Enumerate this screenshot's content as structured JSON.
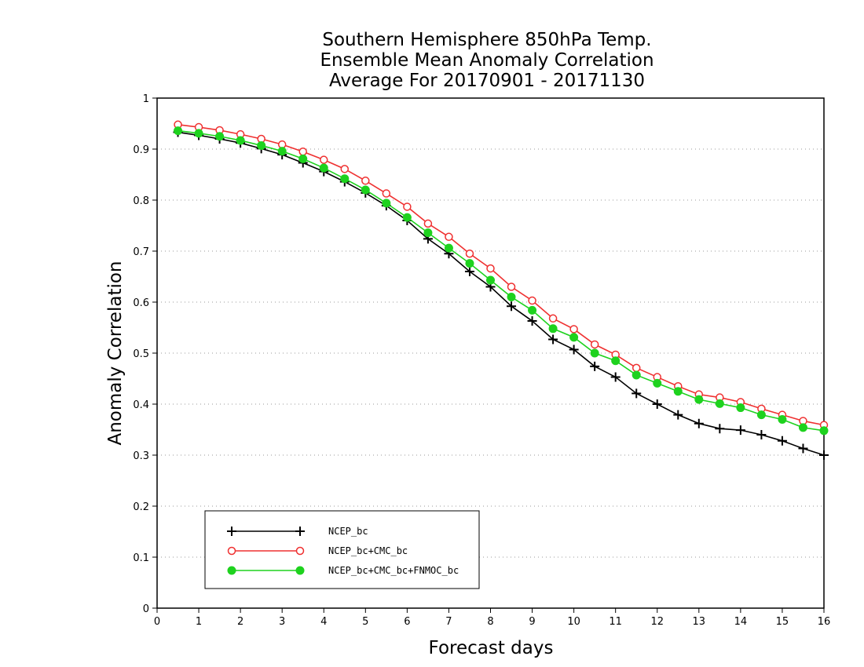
{
  "chart_data": {
    "type": "line",
    "title": [
      "Southern Hemisphere 850hPa Temp.",
      "Ensemble Mean Anomaly Correlation",
      "Average For 20170901 - 20171130"
    ],
    "xlabel": "Forecast days",
    "ylabel": "Anomaly Correlation",
    "xlim": [
      0,
      16
    ],
    "ylim": [
      0,
      1
    ],
    "xticks": [
      0,
      1,
      2,
      3,
      4,
      5,
      6,
      7,
      8,
      9,
      10,
      11,
      12,
      13,
      14,
      15,
      16
    ],
    "yticks": [
      0,
      0.1,
      0.2,
      0.3,
      0.4,
      0.5,
      0.6,
      0.7,
      0.8,
      0.9,
      1
    ],
    "grid": "horizontal-dotted",
    "legend_position": "bottom-left",
    "x": [
      0.5,
      1,
      1.5,
      2,
      2.5,
      3,
      3.5,
      4,
      4.5,
      5,
      5.5,
      6,
      6.5,
      7,
      7.5,
      8,
      8.5,
      9,
      9.5,
      10,
      10.5,
      11,
      11.5,
      12,
      12.5,
      13,
      13.5,
      14,
      14.5,
      15,
      15.5,
      16
    ],
    "series": [
      {
        "name": "NCEP_bc",
        "color": "#000000",
        "marker": "plus",
        "values": [
          0.933,
          0.927,
          0.92,
          0.912,
          0.901,
          0.889,
          0.873,
          0.856,
          0.836,
          0.814,
          0.789,
          0.76,
          0.724,
          0.695,
          0.66,
          0.63,
          0.592,
          0.563,
          0.527,
          0.507,
          0.474,
          0.453,
          0.421,
          0.4,
          0.379,
          0.362,
          0.352,
          0.349,
          0.34,
          0.328,
          0.313,
          0.3
        ]
      },
      {
        "name": "NCEP_bc+CMC_bc",
        "color": "#ef3030",
        "marker": "open-circle",
        "values": [
          0.948,
          0.943,
          0.937,
          0.929,
          0.92,
          0.909,
          0.895,
          0.879,
          0.861,
          0.838,
          0.813,
          0.787,
          0.754,
          0.728,
          0.695,
          0.666,
          0.63,
          0.603,
          0.568,
          0.547,
          0.517,
          0.497,
          0.471,
          0.453,
          0.435,
          0.419,
          0.413,
          0.404,
          0.391,
          0.379,
          0.367,
          0.359
        ]
      },
      {
        "name": "NCEP_bc+CMC_bc+FNMOC_bc",
        "color": "#1ed21e",
        "marker": "filled-circle",
        "values": [
          0.936,
          0.931,
          0.925,
          0.917,
          0.907,
          0.896,
          0.881,
          0.863,
          0.842,
          0.82,
          0.794,
          0.766,
          0.736,
          0.706,
          0.676,
          0.643,
          0.61,
          0.584,
          0.548,
          0.531,
          0.5,
          0.485,
          0.457,
          0.441,
          0.425,
          0.409,
          0.401,
          0.393,
          0.379,
          0.37,
          0.354,
          0.348
        ]
      }
    ]
  }
}
